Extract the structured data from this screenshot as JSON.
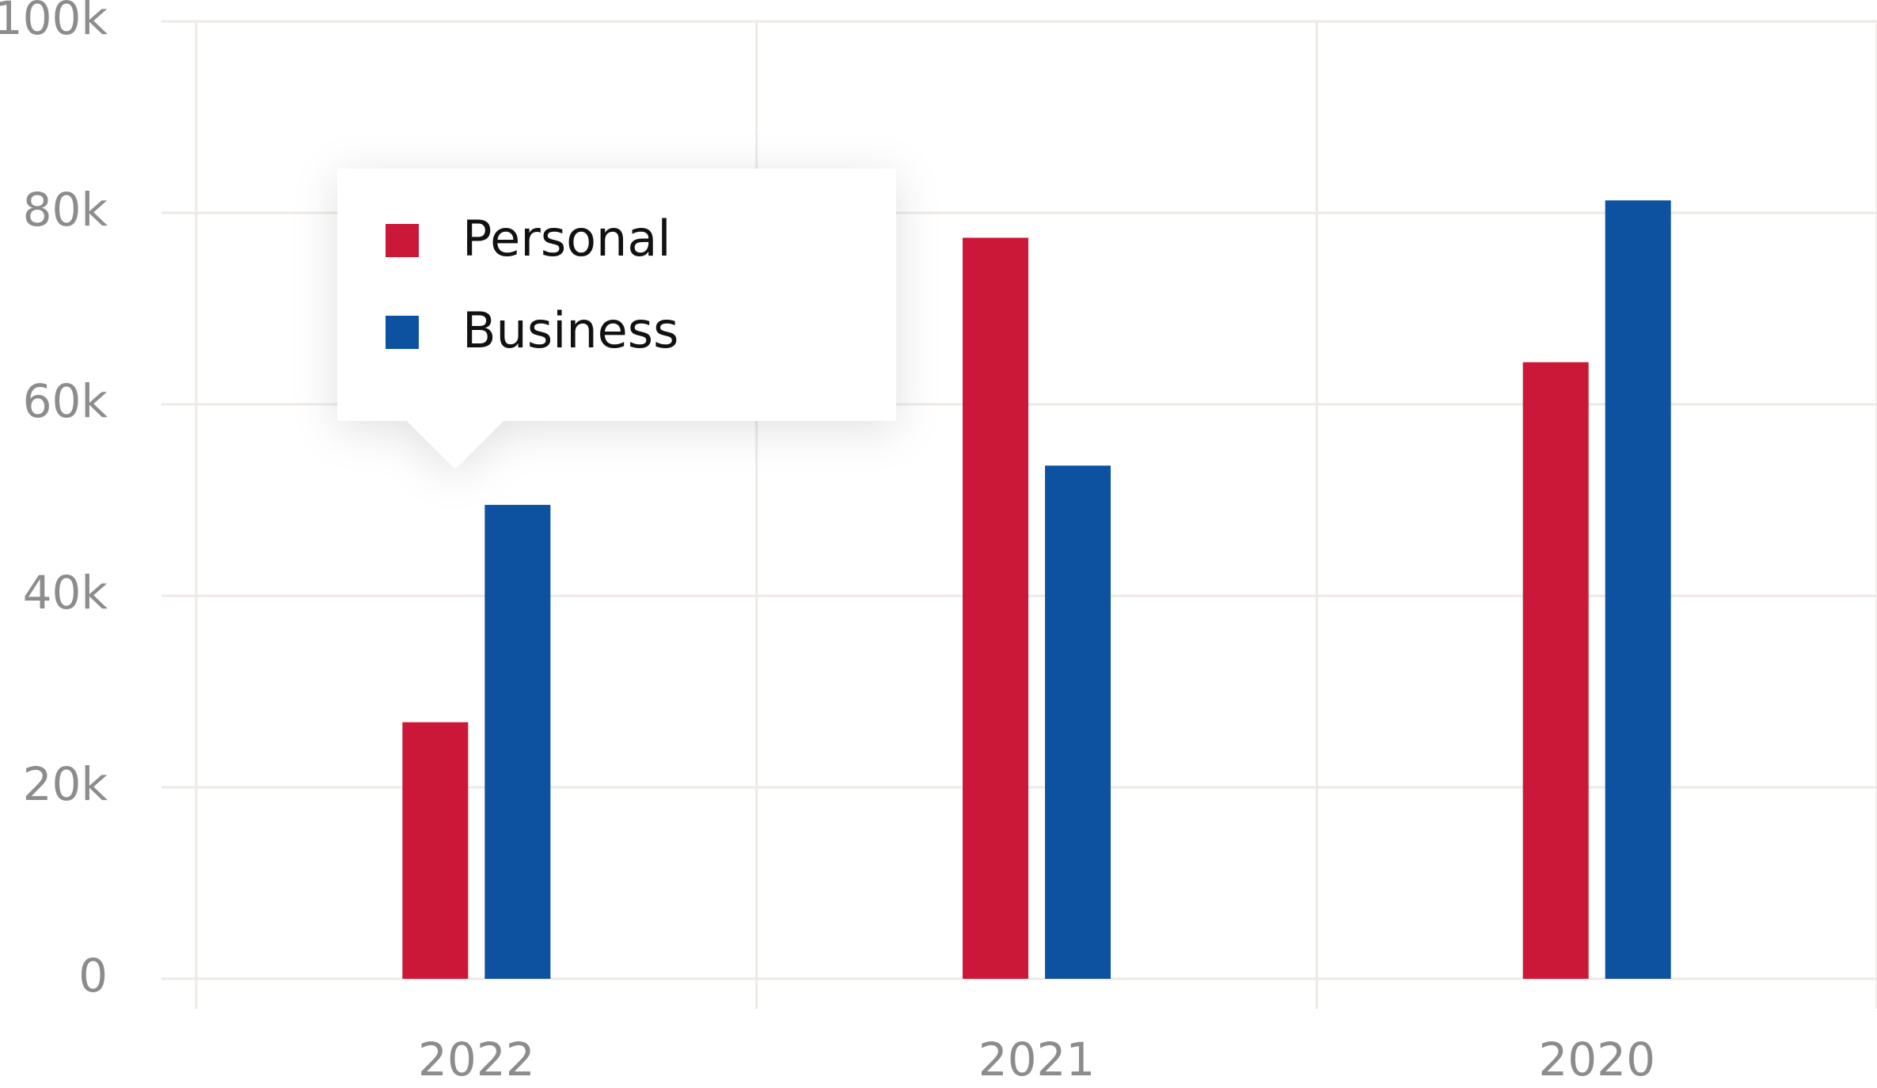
{
  "chart_data": {
    "type": "bar",
    "categories": [
      "2022",
      "2021",
      "2020"
    ],
    "series": [
      {
        "name": "Personal",
        "color": "#cc1838",
        "values": [
          26800,
          77400,
          64400
        ]
      },
      {
        "name": "Business",
        "color": "#0d52a0",
        "values": [
          49500,
          53600,
          81300
        ]
      }
    ],
    "ylim": [
      0,
      100000
    ],
    "yticks": [
      0,
      {
        "value": 20000,
        "label": "20k"
      },
      {
        "value": 40000,
        "label": "40k"
      },
      {
        "value": 60000,
        "label": "60k"
      },
      {
        "value": 80000,
        "label": "80k"
      },
      {
        "value": 100000,
        "label": "100k"
      }
    ],
    "grid": true
  }
}
